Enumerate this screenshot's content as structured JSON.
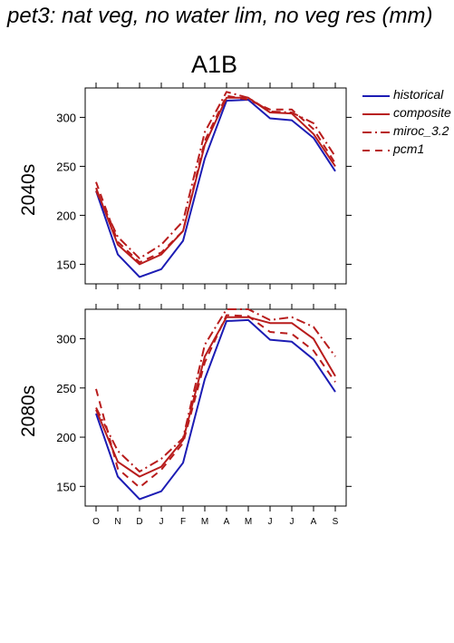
{
  "page_title": "pet3: nat veg, no water lim, no veg res (mm)",
  "scenario": "A1B",
  "colors": {
    "historical": "#1c1cb4",
    "future": "#b81c1c"
  },
  "chart_data": [
    {
      "type": "line",
      "row_label": "2040s",
      "x": [
        "O",
        "N",
        "D",
        "J",
        "F",
        "M",
        "A",
        "M",
        "J",
        "J",
        "A",
        "S"
      ],
      "ylim": [
        130,
        330
      ],
      "yticks": [
        150,
        200,
        250,
        300
      ],
      "series": [
        {
          "name": "historical",
          "values": [
            225,
            160,
            137,
            145,
            174,
            258,
            317,
            318,
            299,
            297,
            279,
            245
          ]
        },
        {
          "name": "composite",
          "values": [
            228,
            170,
            150,
            160,
            184,
            272,
            320,
            320,
            305,
            304,
            283,
            250
          ]
        },
        {
          "name": "miroc_3.2",
          "values": [
            225,
            178,
            156,
            170,
            194,
            285,
            326,
            320,
            306,
            305,
            294,
            260
          ]
        },
        {
          "name": "pcm1",
          "values": [
            234,
            173,
            152,
            162,
            184,
            276,
            322,
            318,
            308,
            308,
            288,
            253
          ]
        }
      ]
    },
    {
      "type": "line",
      "row_label": "2080s",
      "x": [
        "O",
        "N",
        "D",
        "J",
        "F",
        "M",
        "A",
        "M",
        "J",
        "J",
        "A",
        "S"
      ],
      "ylim": [
        130,
        330
      ],
      "yticks": [
        150,
        200,
        250,
        300
      ],
      "series": [
        {
          "name": "historical",
          "values": [
            224,
            160,
            137,
            145,
            174,
            259,
            318,
            319,
            299,
            297,
            279,
            246
          ]
        },
        {
          "name": "composite",
          "values": [
            228,
            175,
            160,
            170,
            197,
            282,
            322,
            322,
            316,
            316,
            300,
            262
          ]
        },
        {
          "name": "miroc_3.2",
          "values": [
            230,
            186,
            165,
            178,
            199,
            294,
            330,
            330,
            319,
            322,
            312,
            282
          ]
        },
        {
          "name": "pcm1",
          "values": [
            249,
            168,
            149,
            167,
            194,
            276,
            324,
            323,
            307,
            305,
            288,
            256
          ]
        }
      ]
    }
  ],
  "legend": [
    {
      "name": "historical",
      "color": "#1c1cb4",
      "dash": ""
    },
    {
      "name": "composite",
      "color": "#b81c1c",
      "dash": ""
    },
    {
      "name": "miroc_3.2",
      "color": "#b81c1c",
      "dash": "10 4 2 4"
    },
    {
      "name": "pcm1",
      "color": "#b81c1c",
      "dash": "8 6"
    }
  ]
}
